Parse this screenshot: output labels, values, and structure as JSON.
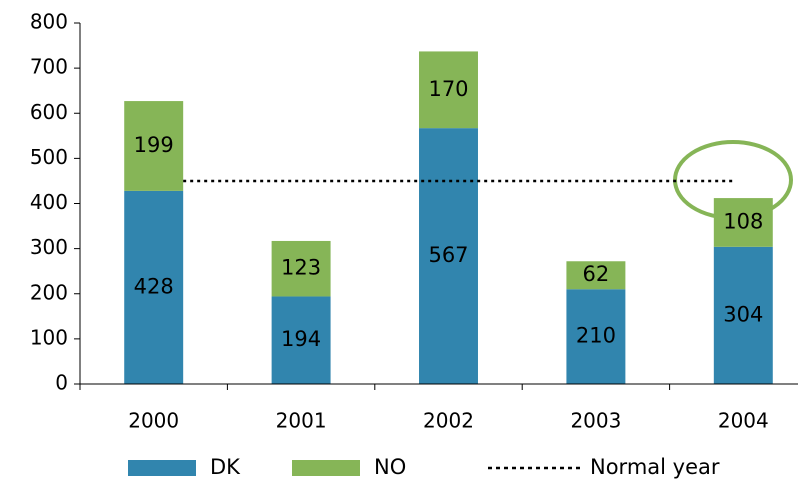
{
  "chart_data": {
    "type": "stacked_bar",
    "categories": [
      "2000",
      "2001",
      "2002",
      "2003",
      "2004"
    ],
    "series": [
      {
        "name": "DK",
        "color": "#3185ae",
        "values": [
          428,
          194,
          567,
          210,
          304
        ]
      },
      {
        "name": "NO",
        "color": "#86b557",
        "values": [
          199,
          123,
          170,
          62,
          108
        ]
      }
    ],
    "reference_line": {
      "name": "Normal year",
      "value": 450,
      "color": "#000000"
    },
    "ylim": [
      0,
      800
    ],
    "yticks": [
      0,
      100,
      200,
      300,
      400,
      500,
      600,
      700,
      800
    ],
    "grid": false
  }
}
